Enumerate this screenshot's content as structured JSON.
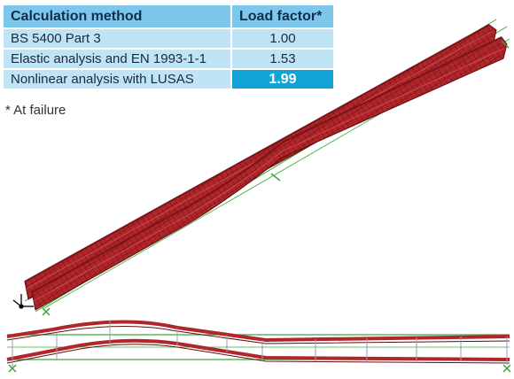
{
  "table": {
    "headers": [
      "Calculation method",
      "Load factor*"
    ],
    "rows": [
      {
        "method": "BS 5400 Part 3",
        "factor": "1.00",
        "highlight": false
      },
      {
        "method": "Elastic analysis and EN 1993-1-1",
        "factor": "1.53",
        "highlight": false
      },
      {
        "method": "Nonlinear analysis with LUSAS",
        "factor": "1.99",
        "highlight": true
      }
    ]
  },
  "footnote": "* At failure",
  "colors": {
    "header_bg": "#7ec7ec",
    "row_bg": "#bfe4f6",
    "highlight_bg": "#12a3d6",
    "mesh": "#b0262a",
    "mesh_dark": "#6e1214",
    "support_green": "#3aa63a"
  },
  "figures": {
    "isometric": "deformed-girder-mesh-isometric",
    "elevation": "deformed-girder-elevation"
  }
}
